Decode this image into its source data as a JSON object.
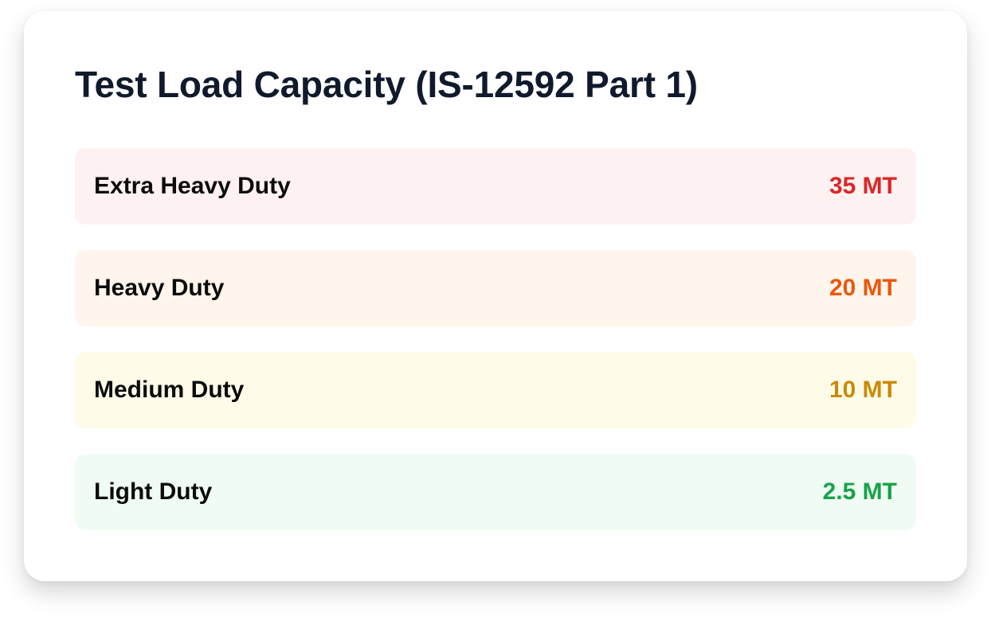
{
  "card": {
    "title": "Test Load Capacity (IS-12592 Part 1)"
  },
  "rows": [
    {
      "label": "Extra Heavy Duty",
      "value": "35 MT",
      "background": "#fef1f1",
      "accent": "#dc2626"
    },
    {
      "label": "Heavy Duty",
      "value": "20 MT",
      "background": "#fff5ec",
      "accent": "#ea580c"
    },
    {
      "label": "Medium Duty",
      "value": "10 MT",
      "background": "#fefbe8",
      "accent": "#ca8a04"
    },
    {
      "label": "Light Duty",
      "value": "2.5 MT",
      "background": "#f0fcf3",
      "accent": "#16a34a"
    }
  ]
}
